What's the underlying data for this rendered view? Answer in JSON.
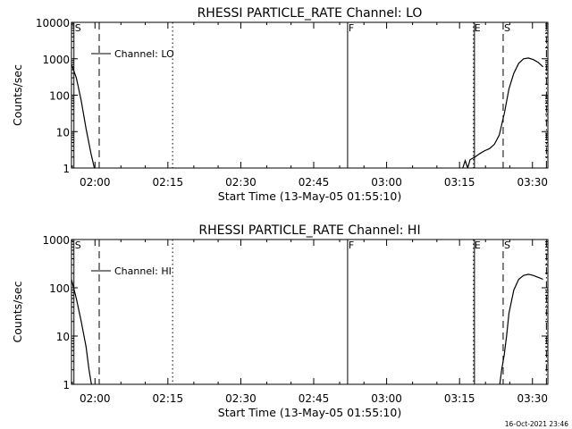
{
  "footer": {
    "timestamp": "16-Oct-2021 23:46"
  },
  "chart_data": [
    {
      "type": "line",
      "title": "RHESSI PARTICLE_RATE Channel: LO",
      "xlabel": "Start Time (13-May-05 01:55:10)",
      "ylabel": "Counts/sec",
      "y_scale": "log",
      "x_unit": "minutes after 01:55:10",
      "xlim": [
        0,
        98
      ],
      "ylim": [
        1,
        10000
      ],
      "x_ticks": [
        {
          "x": 4.83,
          "label": "02:00"
        },
        {
          "x": 19.83,
          "label": "02:15"
        },
        {
          "x": 34.83,
          "label": "02:30"
        },
        {
          "x": 49.83,
          "label": "02:45"
        },
        {
          "x": 64.83,
          "label": "03:00"
        },
        {
          "x": 79.83,
          "label": "03:15"
        },
        {
          "x": 94.83,
          "label": "03:30"
        }
      ],
      "y_ticks": [
        {
          "y": 1,
          "label": "1"
        },
        {
          "y": 10,
          "label": "10"
        },
        {
          "y": 100,
          "label": "100"
        },
        {
          "y": 1000,
          "label": "1000"
        },
        {
          "y": 10000,
          "label": "10000"
        }
      ],
      "legend": {
        "label": "Channel: LO",
        "placement": "top-left"
      },
      "series": [
        {
          "name": "Channel: LO",
          "x": [
            0,
            1,
            2,
            3,
            4,
            4.7
          ],
          "y": [
            700,
            300,
            70,
            12,
            2.5,
            1
          ]
        },
        {
          "name": "Channel: LO",
          "x": [
            80.5,
            81,
            81.5,
            82,
            83,
            84,
            85,
            86,
            87,
            88,
            89,
            90,
            91,
            92,
            93,
            94,
            95,
            96,
            97
          ],
          "y": [
            1,
            1.6,
            1,
            1.7,
            2,
            2.5,
            3,
            3.4,
            4.5,
            8,
            30,
            150,
            400,
            750,
            1000,
            1050,
            950,
            800,
            600
          ]
        }
      ],
      "markers": [
        {
          "x": 0.5,
          "label": "S",
          "style": "solid"
        },
        {
          "x": 5.7,
          "label": "",
          "style": "dashed"
        },
        {
          "x": 20.8,
          "label": "",
          "style": "dotted"
        },
        {
          "x": 56.8,
          "label": "F",
          "style": "solid"
        },
        {
          "x": 82.7,
          "label": "E",
          "style": "dotted"
        },
        {
          "x": 82.9,
          "label": "",
          "style": "solid"
        },
        {
          "x": 88.8,
          "label": "S",
          "style": "dashed"
        },
        {
          "x": 97.7,
          "label": "",
          "style": "dashdot"
        }
      ]
    },
    {
      "type": "line",
      "title": "RHESSI PARTICLE_RATE Channel: HI",
      "xlabel": "Start Time (13-May-05 01:55:10)",
      "ylabel": "Counts/sec",
      "y_scale": "log",
      "x_unit": "minutes after 01:55:10",
      "xlim": [
        0,
        98
      ],
      "ylim": [
        1,
        1000
      ],
      "x_ticks": [
        {
          "x": 4.83,
          "label": "02:00"
        },
        {
          "x": 19.83,
          "label": "02:15"
        },
        {
          "x": 34.83,
          "label": "02:30"
        },
        {
          "x": 49.83,
          "label": "02:45"
        },
        {
          "x": 64.83,
          "label": "03:00"
        },
        {
          "x": 79.83,
          "label": "03:15"
        },
        {
          "x": 94.83,
          "label": "03:30"
        }
      ],
      "y_ticks": [
        {
          "y": 1,
          "label": "1"
        },
        {
          "y": 10,
          "label": "10"
        },
        {
          "y": 100,
          "label": "100"
        },
        {
          "y": 1000,
          "label": "1000"
        }
      ],
      "legend": {
        "label": "Channel: HI",
        "placement": "top-left"
      },
      "series": [
        {
          "name": "Channel: HI",
          "x": [
            0,
            1,
            2,
            3,
            3.6,
            4.1
          ],
          "y": [
            150,
            60,
            20,
            6,
            2,
            1
          ]
        },
        {
          "name": "Channel: HI",
          "x": [
            88.1,
            88.5,
            89,
            89.5,
            90,
            91,
            92,
            93,
            94,
            95,
            96,
            97
          ],
          "y": [
            1,
            2,
            4,
            10,
            30,
            90,
            150,
            180,
            190,
            180,
            165,
            150
          ]
        }
      ],
      "markers": [
        {
          "x": 0.5,
          "label": "S",
          "style": "solid"
        },
        {
          "x": 5.7,
          "label": "",
          "style": "dashed"
        },
        {
          "x": 20.8,
          "label": "",
          "style": "dotted"
        },
        {
          "x": 56.8,
          "label": "F",
          "style": "solid"
        },
        {
          "x": 82.7,
          "label": "E",
          "style": "dotted"
        },
        {
          "x": 82.9,
          "label": "",
          "style": "solid"
        },
        {
          "x": 88.8,
          "label": "S",
          "style": "dashed"
        },
        {
          "x": 97.7,
          "label": "",
          "style": "dashdot"
        }
      ]
    }
  ]
}
